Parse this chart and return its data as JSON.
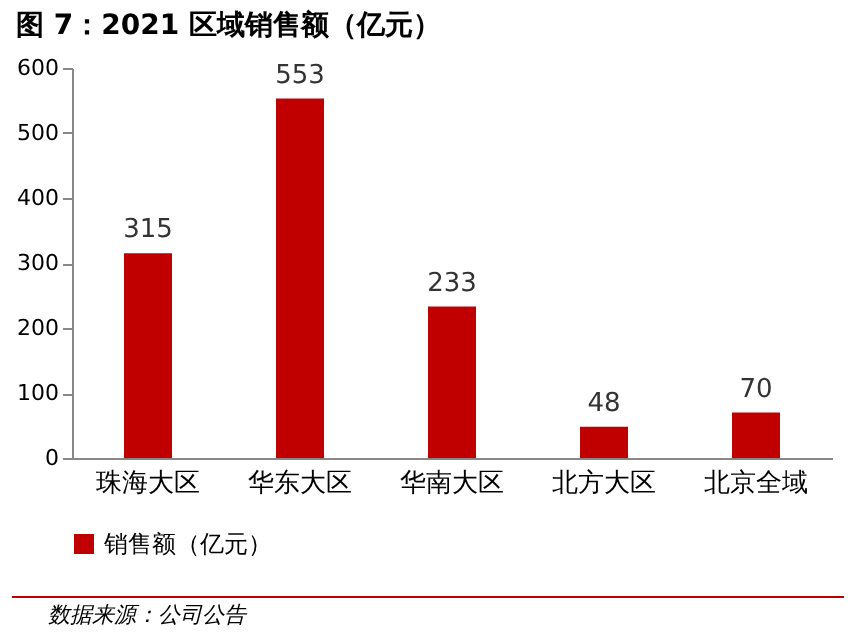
{
  "chart_data": {
    "type": "bar",
    "title": "图 7：2021 区域销售额（亿元）",
    "categories": [
      "珠海大区",
      "华东大区",
      "华南大区",
      "北方大区",
      "北京全域"
    ],
    "series": [
      {
        "name": "销售额（亿元）",
        "color": "#c00000",
        "values": [
          315,
          553,
          233,
          48,
          70
        ]
      }
    ],
    "ylim": [
      0,
      600
    ],
    "yticks": [
      0,
      100,
      200,
      300,
      400,
      500,
      600
    ],
    "grid": false,
    "legend": "bottom",
    "data_labels": true,
    "annotations": [
      "数据来源：公司公告"
    ]
  }
}
